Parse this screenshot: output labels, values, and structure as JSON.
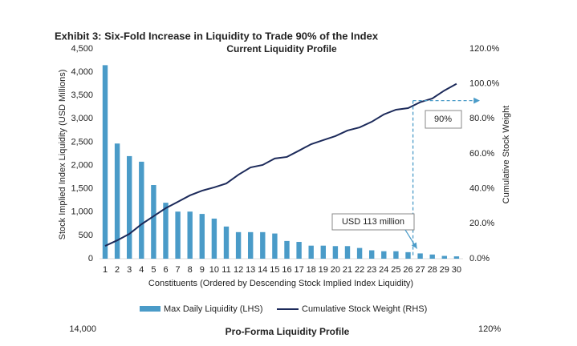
{
  "exhibit_title": "Exhibit 3: Six-Fold Increase in Liquidity to Trade 90% of the Index",
  "chart_data": {
    "type": "bar_line",
    "title": "Current Liquidity Profile",
    "x_label": "Constituents (Ordered by Descending Stock Implied Index Liquidity)",
    "y_label": "Stock Implied Index Liquidity (USD Millions)",
    "y2_label": "Cumulative Stock Weight",
    "categories": [
      "1",
      "2",
      "3",
      "4",
      "5",
      "6",
      "7",
      "8",
      "9",
      "10",
      "11",
      "12",
      "13",
      "14",
      "15",
      "16",
      "17",
      "18",
      "19",
      "20",
      "21",
      "22",
      "23",
      "24",
      "25",
      "26",
      "27",
      "28",
      "29",
      "30"
    ],
    "series": [
      {
        "name": "Max Daily Liquidity (LHS)",
        "type": "bar",
        "color": "#4a9bc8",
        "values": [
          4150,
          2470,
          2200,
          2080,
          1580,
          1200,
          1010,
          1010,
          960,
          860,
          690,
          570,
          570,
          570,
          540,
          380,
          360,
          280,
          280,
          270,
          270,
          230,
          180,
          160,
          160,
          140,
          113,
          90,
          60,
          50
        ]
      },
      {
        "name": "Cumulative Stock Weight (RHS)",
        "type": "line",
        "axis": "y2",
        "color": "#1c2a5a",
        "values": [
          7.3,
          10.5,
          14.2,
          19.7,
          24.3,
          28.9,
          32.5,
          36.2,
          38.9,
          40.8,
          43,
          48,
          52.2,
          53.6,
          57.3,
          58.2,
          61.8,
          65.5,
          67.8,
          70.1,
          73.3,
          75.1,
          78.3,
          82.5,
          85.2,
          86.1,
          89.5,
          91.6,
          96.2,
          100
        ]
      }
    ],
    "ylim": [
      0,
      4500
    ],
    "yticks": [
      0,
      500,
      {
        "value": 1000,
        "label": "1,000"
      },
      {
        "value": 1500,
        "label": "1,500"
      },
      {
        "value": 2000,
        "label": "2,000"
      },
      {
        "value": 2500,
        "label": "2,500"
      },
      {
        "value": 3000,
        "label": "3,000"
      },
      {
        "value": 3500,
        "label": "3,500"
      },
      {
        "value": 4000,
        "label": "4,000"
      },
      {
        "value": 4500,
        "label": "4,500"
      }
    ],
    "y2lim": [
      0,
      120
    ],
    "y2ticks": [
      {
        "value": 0,
        "label": "0.0%"
      },
      {
        "value": 20,
        "label": "20.0%"
      },
      {
        "value": 40,
        "label": "40.0%"
      },
      {
        "value": 60,
        "label": "60.0%"
      },
      {
        "value": 80,
        "label": "80.0%"
      },
      {
        "value": 100,
        "label": "100.0%"
      },
      {
        "value": 120,
        "label": "120.0%"
      }
    ],
    "annotations": [
      {
        "text": "USD 113 million"
      },
      {
        "text": "90%"
      }
    ],
    "grid": false
  },
  "next_chart": {
    "title": "Pro-Forma Liquidity Profile",
    "left_top_tick": {
      "value": 14000,
      "label": "14,000"
    },
    "right_top_tick": {
      "value": 120,
      "label": "120%"
    }
  }
}
